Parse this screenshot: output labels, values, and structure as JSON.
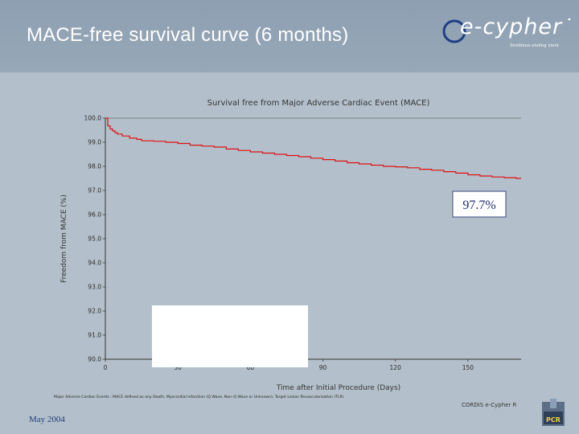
{
  "slide": {
    "title": "MACE-free survival curve (6 months)",
    "date": "May 2004"
  },
  "logo": {
    "name": "e-cypher",
    "tagline": "Sirolimus-eluting stent"
  },
  "annotation": "97.7%",
  "footnote": "Major Adverse Cardiac Events : MACE defined as any Death, Myocardial Infarction (Q Wave, Non–Q Wave or Unknown), Target Lesion Revascularization (TLR)",
  "credit": "CORDIS e-Cypher R",
  "badge": "PCR",
  "colors": {
    "curve": "#e01010",
    "header": "#8d9fb1",
    "background": "#b3c0cb",
    "date": "#1f3a7a"
  },
  "chart_data": {
    "type": "line",
    "title": "Survival free from Major Adverse Cardiac Event (MACE)",
    "xlabel": "Time after Initial Procedure (Days)",
    "ylabel": "Freedom from MACE (%)",
    "xlim": [
      0,
      172
    ],
    "ylim": [
      90,
      100
    ],
    "x_ticks": [
      "0",
      "30",
      "60",
      "90",
      "120",
      "150"
    ],
    "y_ticks": [
      "90.0",
      "91.0",
      "92.0",
      "93.0",
      "94.0",
      "95.0",
      "96.0",
      "97.0",
      "98.0",
      "99.0",
      "100.0"
    ],
    "grid": false,
    "series": [
      {
        "x": [
          0,
          1,
          2,
          3,
          4,
          5,
          7,
          10,
          13,
          15,
          20,
          25,
          30,
          35,
          40,
          45,
          50,
          55,
          60,
          65,
          70,
          75,
          80,
          85,
          90,
          95,
          100,
          105,
          110,
          115,
          120,
          125,
          130,
          135,
          140,
          145,
          150,
          155,
          160,
          165,
          170
        ],
        "y": [
          100.0,
          99.68,
          99.55,
          99.47,
          99.4,
          99.34,
          99.26,
          99.17,
          99.12,
          99.06,
          99.04,
          99.0,
          98.95,
          98.88,
          98.84,
          98.8,
          98.72,
          98.66,
          98.6,
          98.55,
          98.5,
          98.45,
          98.4,
          98.34,
          98.28,
          98.22,
          98.15,
          98.1,
          98.05,
          98.0,
          97.98,
          97.94,
          97.88,
          97.84,
          97.78,
          97.72,
          97.65,
          97.6,
          97.56,
          97.53,
          97.5
        ]
      }
    ]
  }
}
